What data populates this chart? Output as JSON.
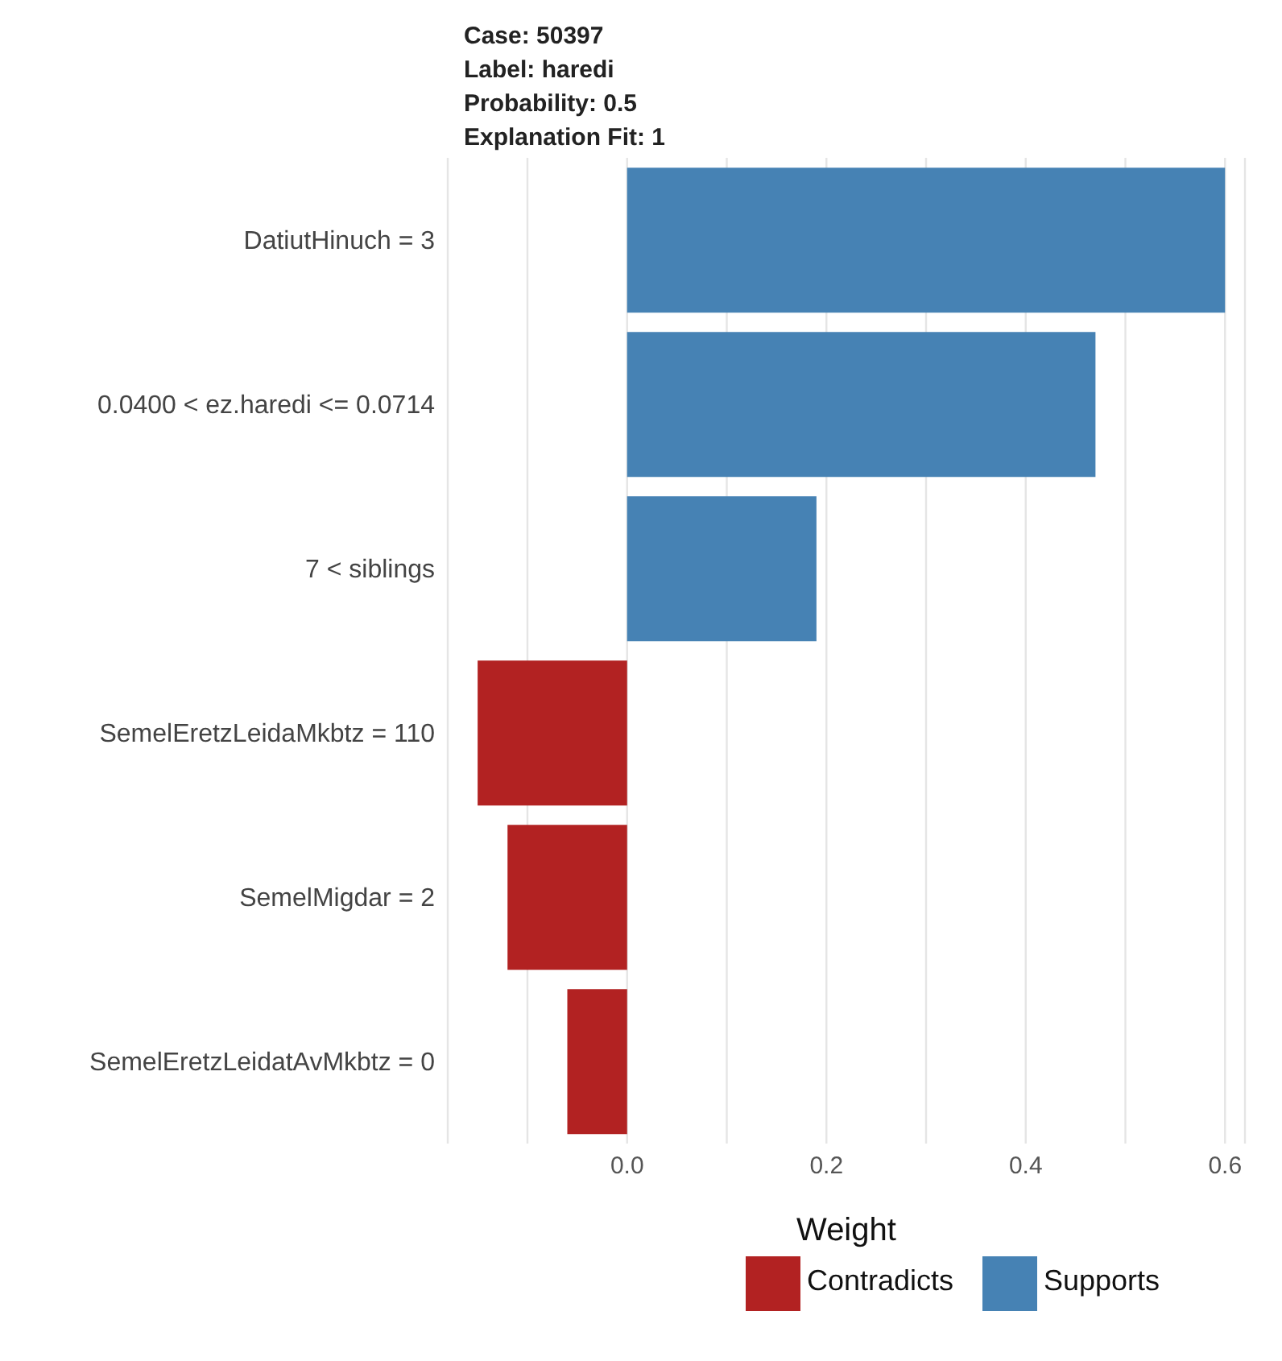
{
  "chart_data": {
    "type": "bar",
    "orientation": "horizontal",
    "stacked": true,
    "title": "Case: 50397\nLabel: haredi\nProbability: 0.5\nExplanation Fit: 1",
    "xlabel": "Weight",
    "categories": [
      "DatiutHinuch = 3",
      "0.0400 < ez.haredi <= 0.0714",
      "7 < siblings",
      "SemelEretzLeidaMkbtz = 110",
      "SemelMigdar = 2",
      "SemelEretzLeidatAvMkbtz = 0"
    ],
    "series": [
      {
        "name": "Supports",
        "color": "#4682b4",
        "values": [
          0.6,
          0.47,
          0.19,
          null,
          null,
          null
        ]
      },
      {
        "name": "Contradicts",
        "color": "#b22222",
        "values": [
          null,
          null,
          null,
          -0.15,
          -0.12,
          -0.06
        ]
      }
    ],
    "xlim": [
      -0.18,
      0.62
    ],
    "xticks": [
      {
        "value": -0.1,
        "label": null
      },
      {
        "value": 0,
        "label": "0.0"
      },
      {
        "value": 0.1,
        "label": null
      },
      {
        "value": 0.2,
        "label": "0.2"
      },
      {
        "value": 0.3,
        "label": null
      },
      {
        "value": 0.4,
        "label": "0.4"
      },
      {
        "value": 0.5,
        "label": null
      },
      {
        "value": 0.6,
        "label": "0.6"
      }
    ],
    "grid": "x",
    "legend": "bottom"
  }
}
